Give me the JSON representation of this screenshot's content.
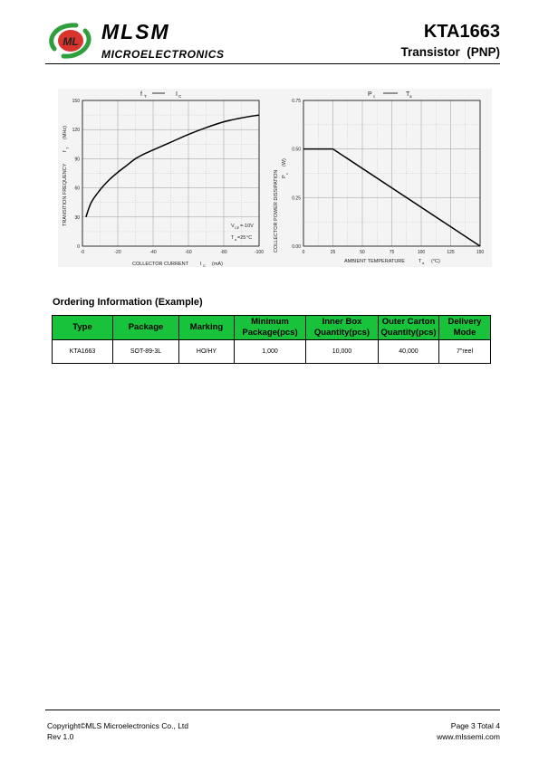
{
  "header": {
    "brand_name": "MLSM",
    "brand_sub": "MICROELECTRONICS",
    "logo_text": "ML",
    "part_number": "KTA1663",
    "part_type": "Transistor  (PNP)"
  },
  "charts": [
    {
      "title_left": "f",
      "title_left_sub": "T",
      "title_right": "I",
      "title_right_sub": "C",
      "ylabel": "TRANSITION FREQUENCY",
      "ysymbol": "f",
      "ysymbol_sub": "T",
      "yunit": "(MHz)",
      "xlabel": "COLLECTOR CURRENT",
      "xsymbol": "I",
      "xsymbol_sub": "C",
      "xunit": "(mA)",
      "annotation1": "V",
      "annotation1_sub": "CE",
      "annotation1_tail": "=-10V",
      "annotation2": "T",
      "annotation2_sub": "a",
      "annotation2_tail": "=25",
      "annotation2_unit": "°C"
    },
    {
      "title_left": "P",
      "title_left_sub": "c",
      "title_right": "T",
      "title_right_sub": "a",
      "ylabel": "COLLECTOR POWER DISSIPATION",
      "ysymbol": "P",
      "ysymbol_sub": "c",
      "yunit": "(W)",
      "xlabel": "AMBIENT TEMPERATURE",
      "xsymbol": "T",
      "xsymbol_sub": "a",
      "xunit": "(°C)"
    }
  ],
  "chart_data": [
    {
      "type": "line",
      "xlabel": "COLLECTOR CURRENT IC (mA)",
      "ylabel": "TRANSITION FREQUENCY fT (MHz)",
      "xlim": [
        0,
        -100
      ],
      "ylim": [
        0,
        150
      ],
      "x_ticks": [
        "-0",
        "-20",
        "-40",
        "-60",
        "-80",
        "-100"
      ],
      "y_ticks": [
        "0",
        "30",
        "60",
        "90",
        "120",
        "150"
      ],
      "grid": true,
      "series": [
        {
          "x": [
            -2,
            -5,
            -10,
            -15,
            -20,
            -25,
            -30,
            -35,
            -40,
            -50,
            -60,
            -70,
            -80,
            -90,
            -100
          ],
          "y": [
            30,
            45,
            58,
            68,
            76,
            83,
            90,
            95,
            99,
            107,
            115,
            122,
            128,
            132,
            135
          ]
        }
      ]
    },
    {
      "type": "line",
      "xlabel": "AMBIENT TEMPERATURE Ta (°C)",
      "ylabel": "COLLECTOR POWER DISSIPATION Pc (W)",
      "xlim": [
        0,
        150
      ],
      "ylim": [
        0,
        0.75
      ],
      "x_ticks": [
        "0",
        "25",
        "50",
        "75",
        "100",
        "125",
        "150"
      ],
      "y_ticks": [
        "0.00",
        "0.25",
        "0.50",
        "0.75"
      ],
      "grid": true,
      "series": [
        {
          "x": [
            0,
            25,
            150
          ],
          "y": [
            0.5,
            0.5,
            0
          ]
        }
      ]
    }
  ],
  "ordering": {
    "title": "Ordering Information (Example)",
    "headers": [
      "Type",
      "Package",
      "Marking",
      "Minimum Package(pcs)",
      "Inner Box Quantity(pcs)",
      "Outer Carton Quantity(pcs)",
      "Delivery Mode"
    ],
    "rows": [
      [
        "KTA1663",
        "SOT-89-3L",
        "HO/HY",
        "1,000",
        "10,000",
        "40,000",
        "7\"reel"
      ]
    ]
  },
  "footer": {
    "copyright": "Copyright©MLS Microelectronics Co., Ltd",
    "revision": "Rev 1.0",
    "page": "Page 3 Total 4",
    "website": "www.mlssemi.com"
  },
  "colors": {
    "table_header": "#19c23b",
    "logo_green": "#2f9e3c",
    "logo_red": "#d9342b"
  }
}
